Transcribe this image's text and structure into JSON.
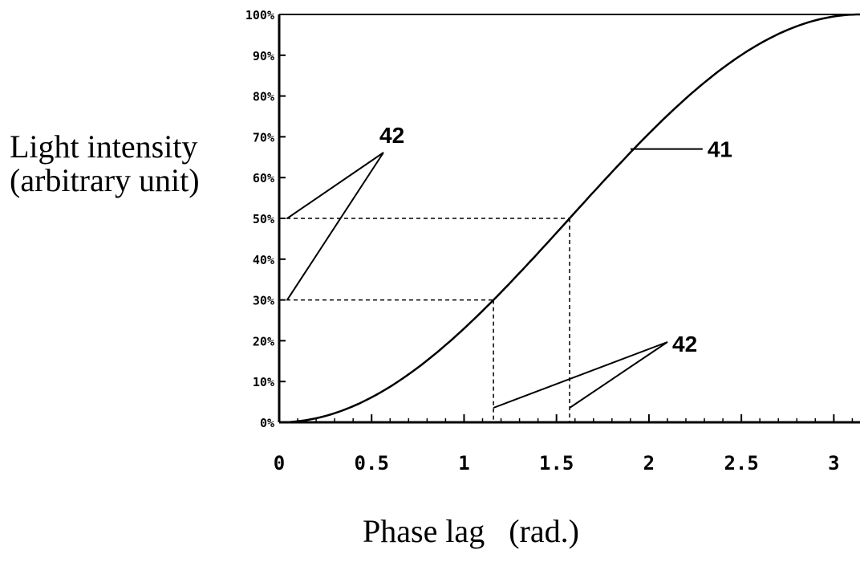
{
  "chart_data": {
    "type": "line",
    "xlabel": "Phase lag   (rad.)",
    "ylabel_lines": [
      "Light intensity",
      "(arbitrary unit)"
    ],
    "x_ticks": [
      0,
      0.5,
      1,
      1.5,
      2,
      2.5,
      3
    ],
    "x_tick_labels": [
      "0",
      "0.5",
      "1",
      "1.5",
      "2",
      "2.5",
      "3"
    ],
    "y_ticks": [
      0,
      10,
      20,
      30,
      40,
      50,
      60,
      70,
      80,
      90,
      100
    ],
    "y_tick_labels": [
      "0%",
      "10%",
      "20%",
      "30%",
      "40%",
      "50%",
      "60%",
      "70%",
      "80%",
      "90%",
      "100%"
    ],
    "xlim": [
      0,
      3.1416
    ],
    "ylim": [
      0,
      100
    ],
    "series": [
      {
        "label": "41",
        "x": [
          0,
          0.2,
          0.4,
          0.6,
          0.8,
          1.0,
          1.159,
          1.2,
          1.4,
          1.571,
          1.8,
          2.0,
          2.2,
          2.4,
          2.6,
          2.8,
          3.0,
          3.1416
        ],
        "y": [
          0,
          1,
          4,
          9,
          16,
          23,
          30,
          32,
          41,
          50,
          62,
          71,
          79,
          87,
          94,
          98,
          100,
          100
        ]
      }
    ],
    "reference_lines": [
      {
        "x": 1.159,
        "y": 30
      },
      {
        "x": 1.571,
        "y": 50
      }
    ],
    "annotations": [
      {
        "text": "42",
        "points": [
          {
            "x": 0,
            "y": 50
          },
          {
            "x": 0,
            "y": 30
          }
        ]
      },
      {
        "text": "42",
        "points": [
          {
            "x": 1.159,
            "y": 0
          },
          {
            "x": 1.571,
            "y": 0
          }
        ]
      },
      {
        "text": "41",
        "points": [
          {
            "x": 1.9,
            "y": 67
          }
        ]
      }
    ]
  }
}
